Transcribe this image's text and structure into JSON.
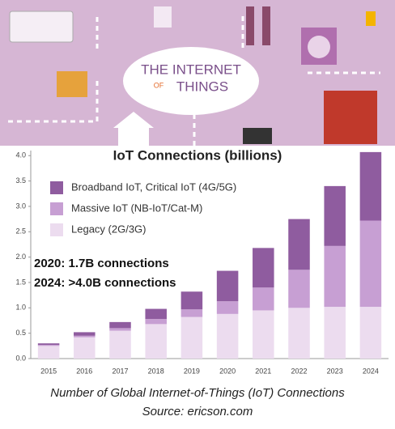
{
  "banner": {
    "line1": "THE INTERNET",
    "line2": "OF",
    "line3": "THINGS"
  },
  "chart_data": {
    "type": "bar",
    "stacked": true,
    "title": "IoT Connections (billions)",
    "categories": [
      "2015",
      "2016",
      "2017",
      "2018",
      "2019",
      "2020",
      "2021",
      "2022",
      "2023",
      "2024"
    ],
    "series": [
      {
        "name": "Legacy (2G/3G)",
        "color": "#ecdcef",
        "values": [
          0.25,
          0.42,
          0.55,
          0.68,
          0.82,
          0.88,
          0.95,
          1.0,
          1.02,
          1.02
        ]
      },
      {
        "name": "Massive IoT (NB-IoT/Cat-M)",
        "color": "#c79fd3",
        "values": [
          0.02,
          0.03,
          0.05,
          0.1,
          0.15,
          0.25,
          0.45,
          0.75,
          1.2,
          1.7
        ]
      },
      {
        "name": "Broadband IoT, Critical IoT (4G/5G)",
        "color": "#8f5c9f",
        "values": [
          0.03,
          0.07,
          0.12,
          0.2,
          0.35,
          0.6,
          0.78,
          1.0,
          1.18,
          1.35
        ]
      }
    ],
    "ylim": [
      0,
      4.1
    ],
    "yticks": [
      {
        "value": 0,
        "label": "0.0"
      },
      0.5,
      {
        "value": 1,
        "label": "1.0"
      },
      1.5,
      {
        "value": 2,
        "label": "2.0"
      },
      2.5,
      {
        "value": 3,
        "label": "3.0"
      },
      3.5,
      {
        "value": 4,
        "label": "4.0"
      }
    ],
    "grid": false,
    "annotations": [
      "2020: 1.7B connections",
      "2024: >4.0B connections"
    ]
  },
  "caption": {
    "line1": "Number of Global Internet-of-Things (IoT) Connections",
    "line2": "Source: ericson.com"
  }
}
